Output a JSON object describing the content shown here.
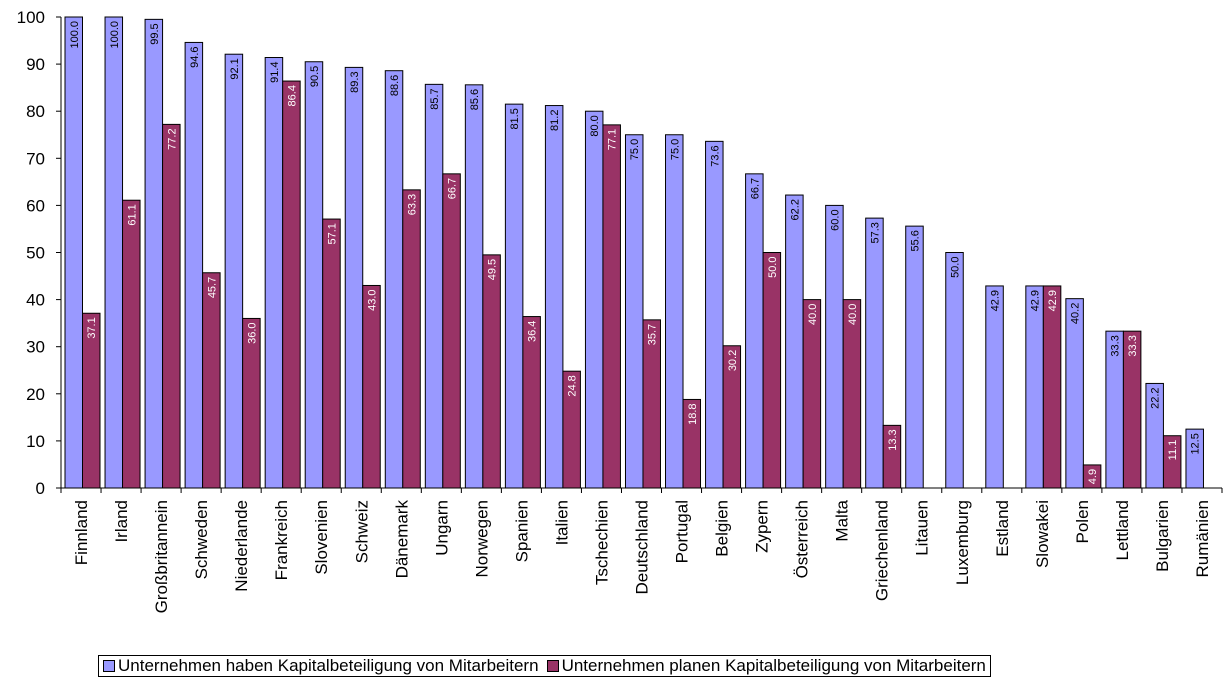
{
  "chart_data": {
    "type": "bar",
    "title": "",
    "xlabel": "",
    "ylabel": "",
    "ylim": [
      0,
      100
    ],
    "yticks": [
      0,
      10,
      20,
      30,
      40,
      50,
      60,
      70,
      80,
      90,
      100
    ],
    "grid": false,
    "legend_position": "bottom",
    "categories": [
      "Finnland",
      "Irland",
      "Großbritannein",
      "Schweden",
      "Niederlande",
      "Frankreich",
      "Slovenien",
      "Schweiz",
      "Dänemark",
      "Ungarn",
      "Norwegen",
      "Spanien",
      "Italien",
      "Tschechien",
      "Deutschland",
      "Portugal",
      "Belgien",
      "Zypern",
      "Österreich",
      "Malta",
      "Griechenland",
      "Litauen",
      "Luxemburg",
      "Estland",
      "Slowakei",
      "Polen",
      "Lettland",
      "Bulgarien",
      "Rumänien"
    ],
    "series": [
      {
        "name": "Unternehmen haben Kapitalbeteiligung von Mitarbeitern",
        "color": "#9999ff",
        "values": [
          100.0,
          100.0,
          99.5,
          94.6,
          92.1,
          91.4,
          90.5,
          89.3,
          88.6,
          85.7,
          85.6,
          81.5,
          81.2,
          80.0,
          75.0,
          75.0,
          73.6,
          66.7,
          62.2,
          60.0,
          57.3,
          55.6,
          50.0,
          42.9,
          42.9,
          40.2,
          33.3,
          22.2,
          12.5
        ],
        "labels": [
          "100.0",
          "100.0",
          "99.5",
          "94.6",
          "92.1",
          "91.4",
          "90.5",
          "89.3",
          "88.6",
          "85.7",
          "85.6",
          "81.5",
          "81.2",
          "80.0",
          "75.0",
          "75.0",
          "73.6",
          "66.7",
          "62.2",
          "60.0",
          "57.3",
          "55.6",
          "50.0",
          "42.9",
          "42.9",
          "40.2",
          "33.3",
          "22.2",
          "12.5"
        ]
      },
      {
        "name": "Unternehmen planen Kapitalbeteiligung von Mitarbeitern",
        "color": "#993366",
        "values": [
          37.1,
          61.1,
          77.2,
          45.7,
          36.0,
          86.4,
          57.1,
          43.0,
          63.3,
          66.7,
          49.5,
          36.4,
          24.8,
          77.1,
          35.7,
          18.8,
          30.2,
          50.0,
          40.0,
          40.0,
          13.3,
          null,
          null,
          null,
          42.9,
          4.9,
          33.3,
          11.1,
          null
        ],
        "labels": [
          "37.1",
          "61.1",
          "77.2",
          "45.7",
          "36.0",
          "86.4",
          "57.1",
          "43.0",
          "63.3",
          "66.7",
          "49.5",
          "36.4",
          "24.8",
          "77.1",
          "35.7",
          "18.8",
          "30.2",
          "50.0",
          "40.0",
          "40.0",
          "13.3",
          "",
          "",
          "",
          "42.9",
          "4.9",
          "33.3",
          "11.1",
          ""
        ]
      }
    ]
  }
}
